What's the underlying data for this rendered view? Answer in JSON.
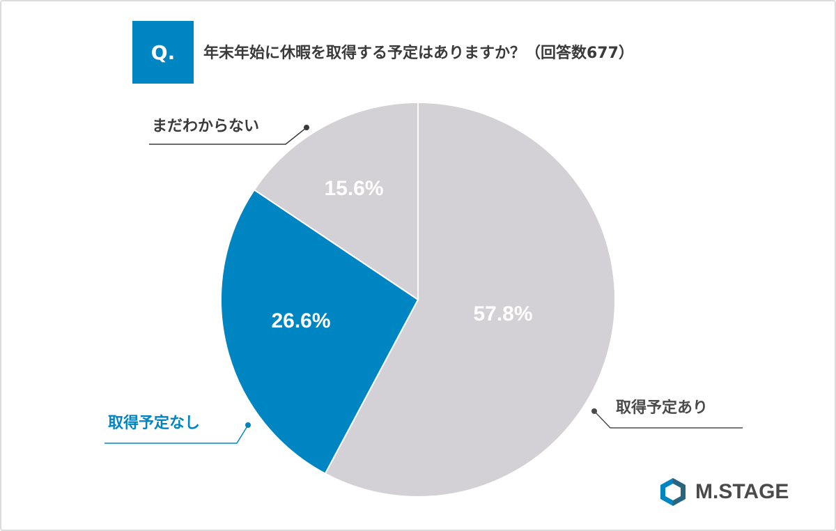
{
  "header": {
    "badge": "Q.",
    "question": "年末年始に休暇を取得する予定はありますか？（回答数677）"
  },
  "chart_data": {
    "type": "pie",
    "title": "年末年始に休暇を取得する予定はありますか？（回答数677）",
    "slices": [
      {
        "name": "取得予定あり",
        "value": 57.8,
        "value_label": "57.8%",
        "color": "#d3d1d5"
      },
      {
        "name": "取得予定なし",
        "value": 26.6,
        "value_label": "26.6%",
        "color": "#0085c3"
      },
      {
        "name": "まだわからない",
        "value": 15.6,
        "value_label": "15.6%",
        "color": "#d3d1d5"
      }
    ],
    "start": "12 o'clock",
    "direction": "clockwise"
  },
  "logo": {
    "text": "M.STAGE",
    "icon": "hexagon-logo-icon",
    "color": "#4a4a4a"
  }
}
